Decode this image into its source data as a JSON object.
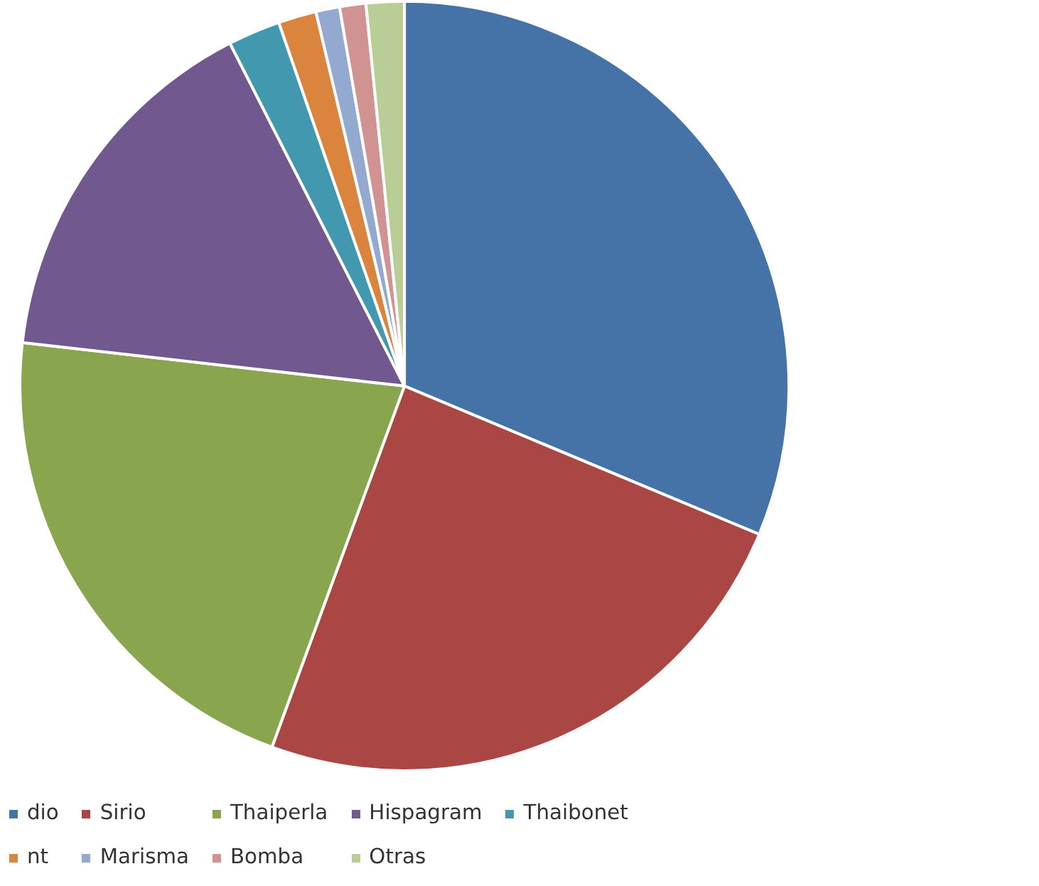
{
  "chart_data": {
    "type": "pie",
    "categories": [
      "dio",
      "Sirio",
      "Thaiperla",
      "Hispagram",
      "Thaibonet",
      "nt",
      "Marisma",
      "Bomba",
      "Otras"
    ],
    "values": [
      31.3,
      24.3,
      21.2,
      15.7,
      2.2,
      1.6,
      1.0,
      1.1,
      1.6
    ],
    "colors": [
      "#4572a7",
      "#aa4643",
      "#89a54e",
      "#71588f",
      "#4198af",
      "#db843d",
      "#93a9cf",
      "#d19392",
      "#b9cd96"
    ],
    "legend": "bottom"
  }
}
